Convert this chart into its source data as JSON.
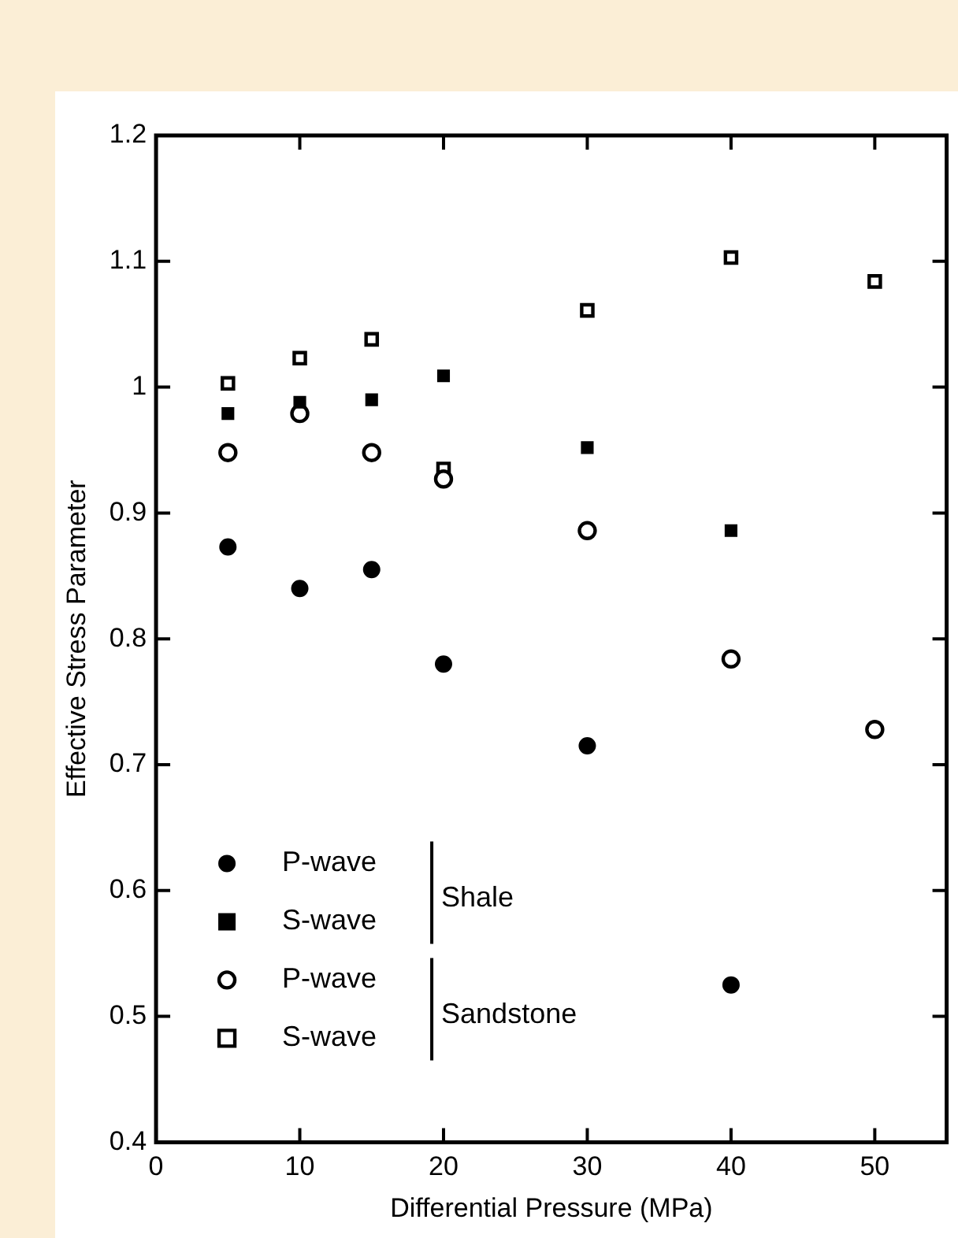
{
  "chart_data": {
    "type": "scatter",
    "xlabel": "Differential Pressure (MPa)",
    "ylabel": "Effective Stress Parameter",
    "x": [
      5,
      10,
      15,
      20,
      30,
      40,
      50
    ],
    "series": [
      {
        "name": "P-wave",
        "color": "#000000",
        "marker": "circle",
        "values": [
          0.873,
          0.84,
          0.855,
          0.78,
          0.715,
          0.525,
          null
        ]
      },
      {
        "name": "S-wave",
        "color": "#000000",
        "marker": "square",
        "values": [
          0.979,
          0.988,
          0.99,
          1.009,
          0.952,
          0.886,
          null
        ]
      },
      {
        "name": "P-wave",
        "color": "#000000",
        "marker": "circle",
        "values": [
          0.948,
          0.979,
          0.948,
          0.927,
          0.886,
          0.784,
          0.728
        ]
      },
      {
        "name": "S-wave",
        "color": "#000000",
        "marker": "square",
        "values": [
          1.003,
          1.023,
          1.038,
          0.935,
          1.061,
          1.103,
          1.084
        ]
      }
    ],
    "annotations": [
      "Shale",
      "Sandstone"
    ],
    "xlim": [
      0,
      55
    ],
    "xticks": [
      0,
      10,
      20,
      30,
      40,
      50
    ],
    "ylim": [
      0.4,
      1.2
    ],
    "yticks": [
      0.4,
      0.5,
      0.6,
      0.7,
      0.8,
      0.9,
      1,
      1.1,
      1.2
    ],
    "grid": false,
    "legend": "bottom left"
  }
}
